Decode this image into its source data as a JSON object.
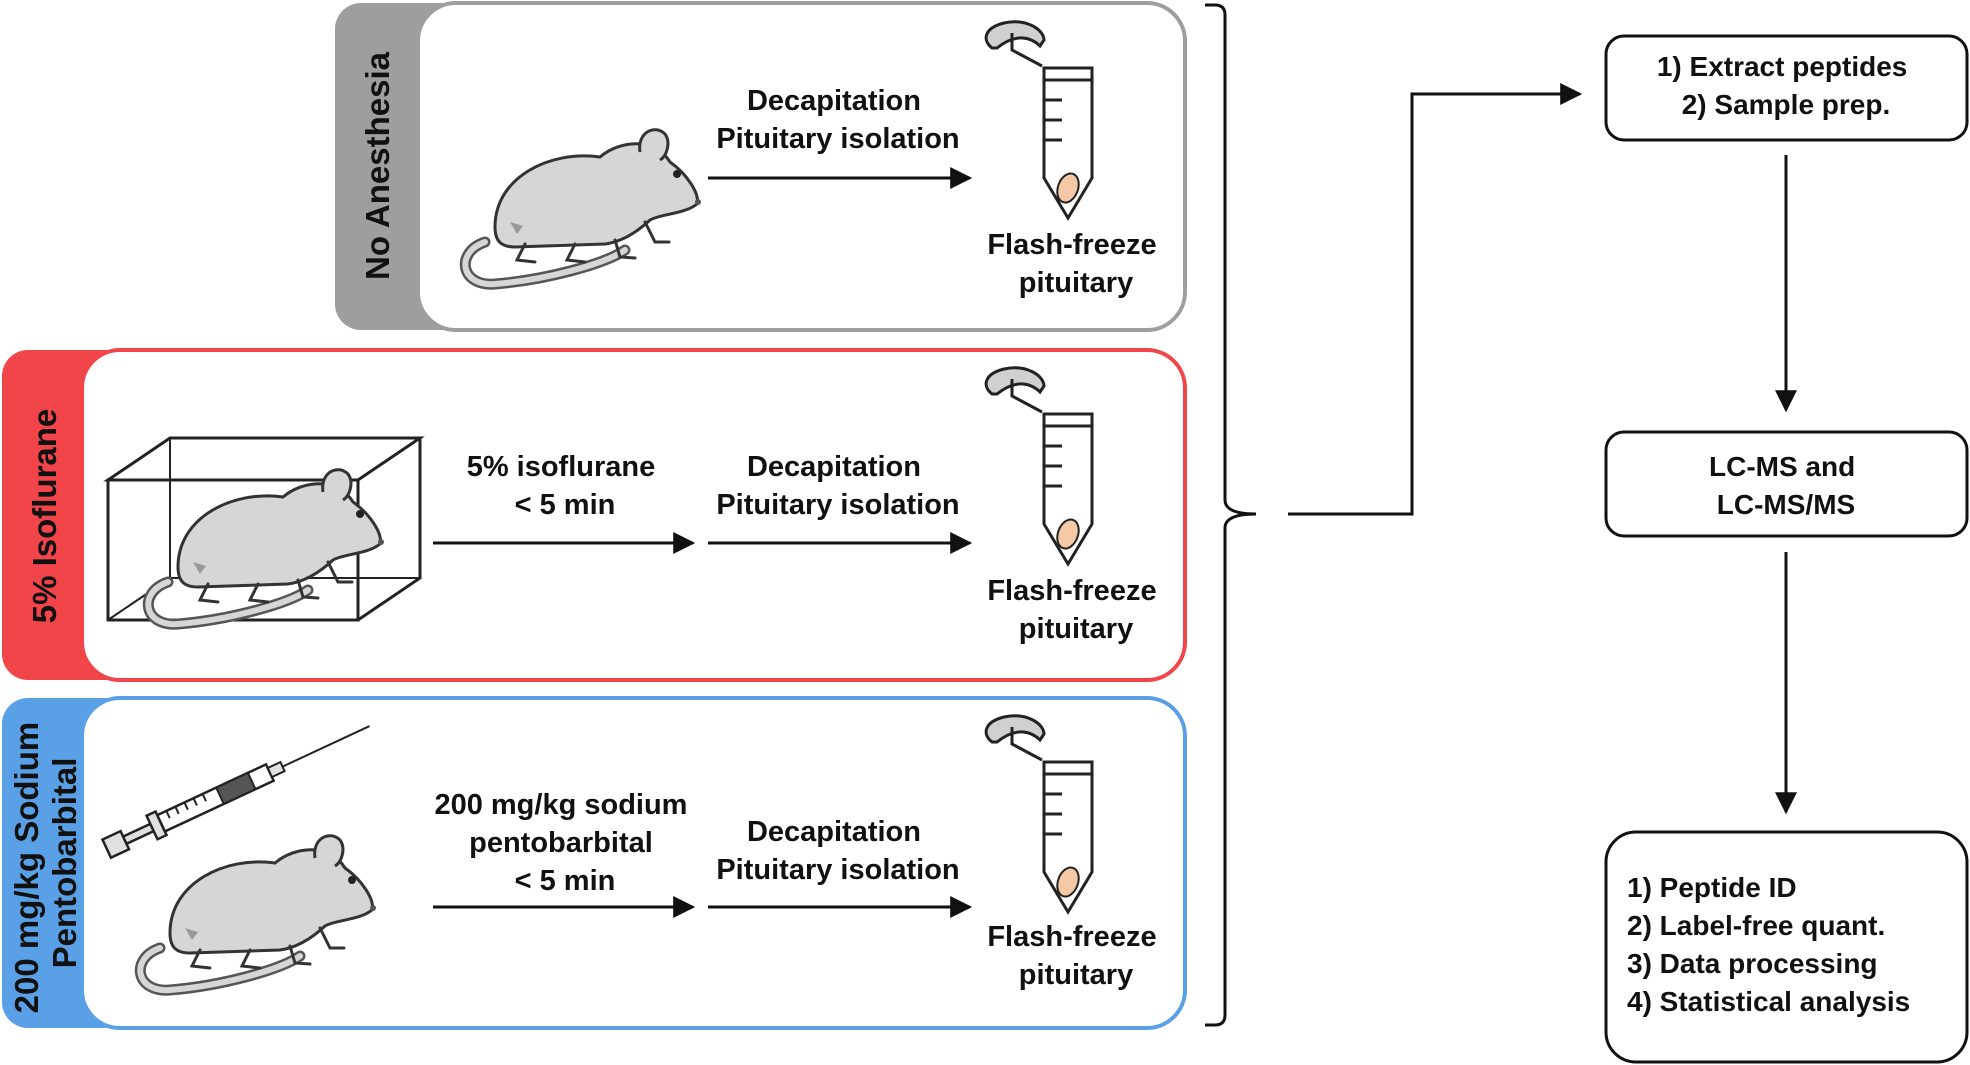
{
  "colors": {
    "no_anesthesia": "#9e9e9e",
    "isoflurane": "#f2454a",
    "pentobarbital": "#5aa0e6",
    "tube_pellet": "#f5c9a6",
    "mouse_fill": "#d6d6d6"
  },
  "groups": [
    {
      "label_lines": [
        "No Anesthesia"
      ],
      "steps": [
        {
          "lines": [
            "Decapitation",
            "Pituitary isolation"
          ]
        }
      ],
      "result_lines": [
        "Flash-freeze",
        "pituitary"
      ]
    },
    {
      "label_lines": [
        "5% Isoflurane"
      ],
      "steps": [
        {
          "lines": [
            "5% isoflurane",
            "< 5 min"
          ]
        },
        {
          "lines": [
            "Decapitation",
            "Pituitary isolation"
          ]
        }
      ],
      "result_lines": [
        "Flash-freeze",
        "pituitary"
      ]
    },
    {
      "label_lines": [
        "200 mg/kg Sodium",
        "Pentobarbital"
      ],
      "steps": [
        {
          "lines": [
            "200 mg/kg sodium",
            "pentobarbital",
            "< 5 min"
          ]
        },
        {
          "lines": [
            "Decapitation",
            "Pituitary isolation"
          ]
        }
      ],
      "result_lines": [
        "Flash-freeze",
        "pituitary"
      ]
    }
  ],
  "workflow": [
    {
      "lines": [
        "1) Extract peptides",
        "2) Sample prep."
      ]
    },
    {
      "lines": [
        "LC-MS and",
        "LC-MS/MS"
      ]
    },
    {
      "lines": [
        "1) Peptide ID",
        "2) Label-free quant.",
        "3) Data processing",
        "4) Statistical analysis"
      ]
    }
  ]
}
